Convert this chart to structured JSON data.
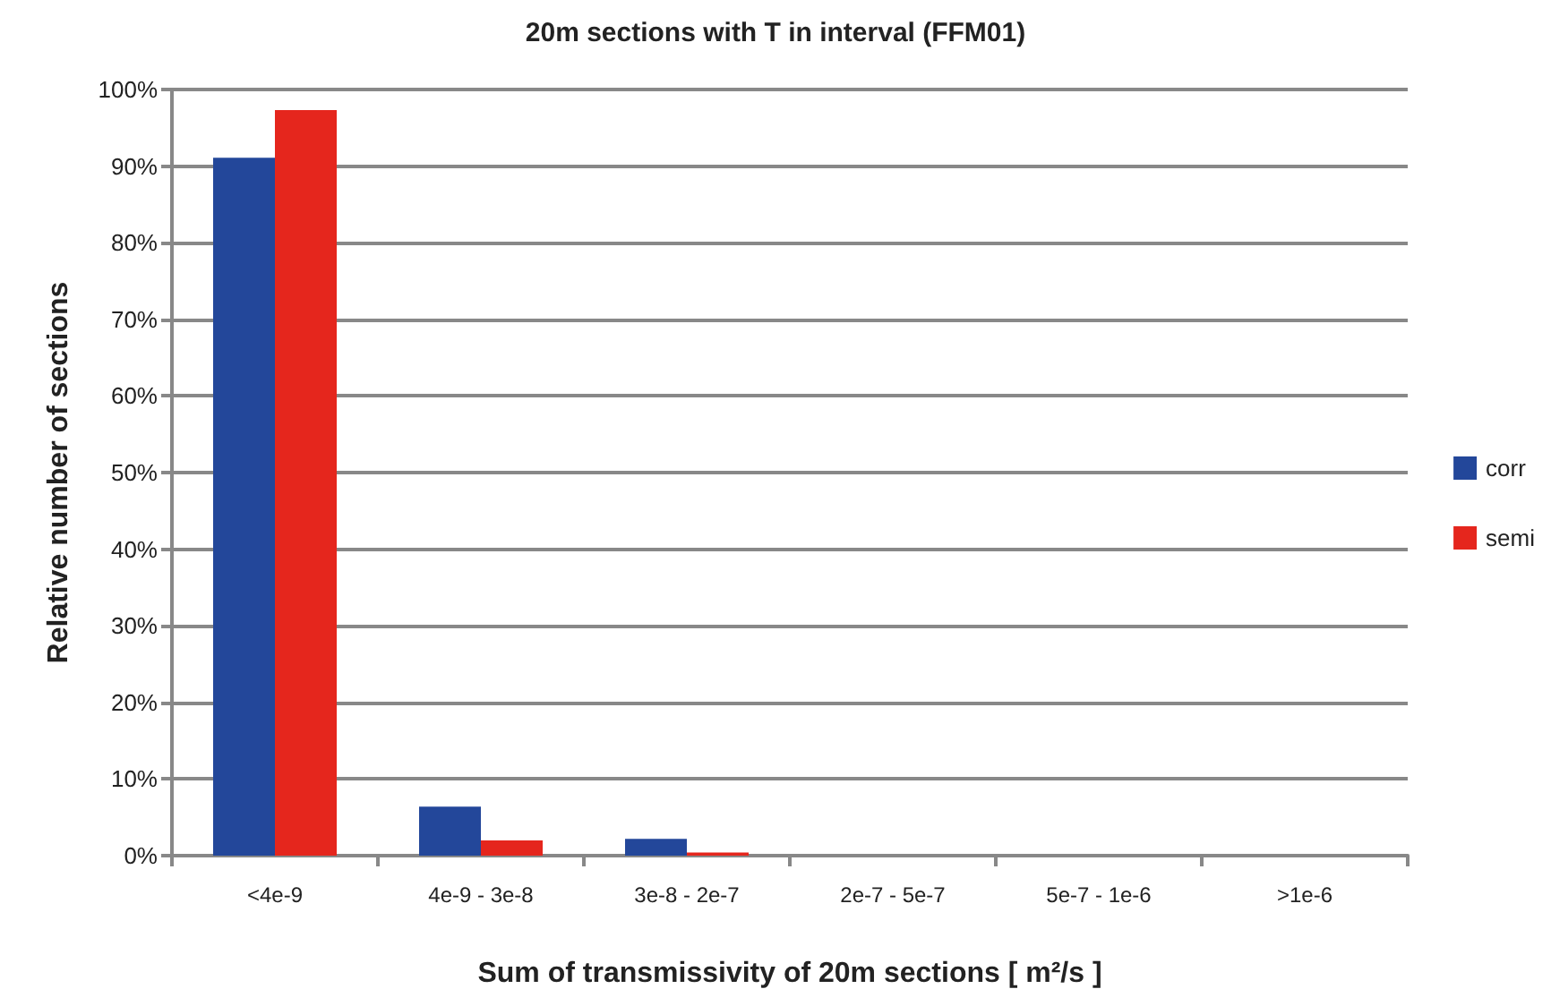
{
  "chart_data": {
    "type": "bar",
    "title": "20m sections with T in interval (FFM01)",
    "xlabel": "Sum of transmissivity of 20m sections [ m²/s ]",
    "ylabel": "Relative number of sections",
    "categories": [
      "<4e-9",
      "4e-9 - 3e-8",
      "3e-8 - 2e-7",
      "2e-7 - 5e-7",
      "5e-7 - 1e-6",
      ">1e-6"
    ],
    "series": [
      {
        "name": "corr",
        "color": "#23479a",
        "values": [
          91.1,
          6.4,
          2.2,
          0,
          0,
          0
        ]
      },
      {
        "name": "semi",
        "color": "#e5261d",
        "values": [
          97.3,
          2.0,
          0.4,
          0,
          0,
          0
        ]
      }
    ],
    "ylim": [
      0,
      100
    ],
    "yticks": [
      {
        "value": 0,
        "label": "0%"
      },
      {
        "value": 10,
        "label": "10%"
      },
      {
        "value": 20,
        "label": "20%"
      },
      {
        "value": 30,
        "label": "30%"
      },
      {
        "value": 40,
        "label": "40%"
      },
      {
        "value": 50,
        "label": "50%"
      },
      {
        "value": 60,
        "label": "60%"
      },
      {
        "value": 70,
        "label": "70%"
      },
      {
        "value": 80,
        "label": "80%"
      },
      {
        "value": 90,
        "label": "90%"
      },
      {
        "value": 100,
        "label": "100%"
      }
    ],
    "grid": "y",
    "legend": "right"
  }
}
